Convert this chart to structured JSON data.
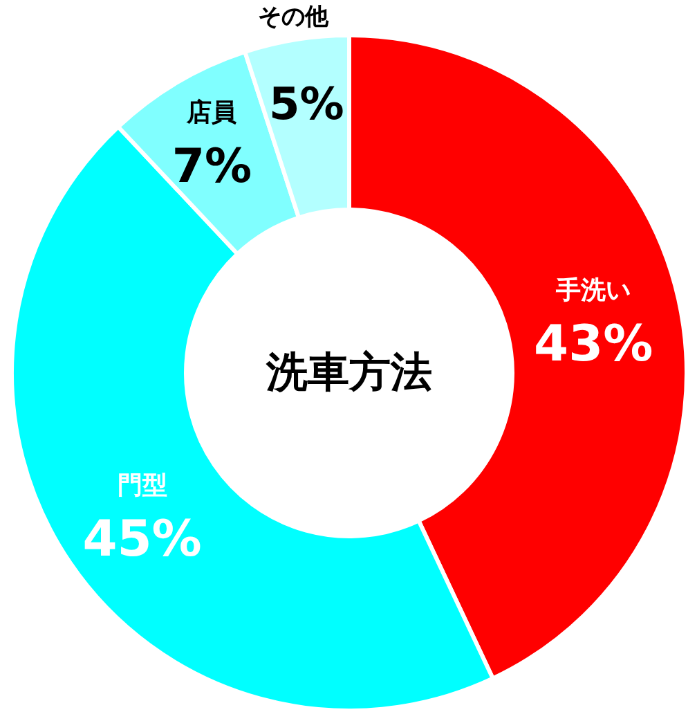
{
  "chart_data": {
    "type": "donut",
    "title": "洗車方法",
    "categories": [
      "手洗い",
      "門型",
      "店員",
      "その他"
    ],
    "values": [
      43,
      45,
      7,
      5
    ],
    "colors": [
      "#ff0000",
      "#00ffff",
      "#80ffff",
      "#b3ffff"
    ],
    "value_labels": [
      "43%",
      "45%",
      "7%",
      "5%"
    ]
  }
}
